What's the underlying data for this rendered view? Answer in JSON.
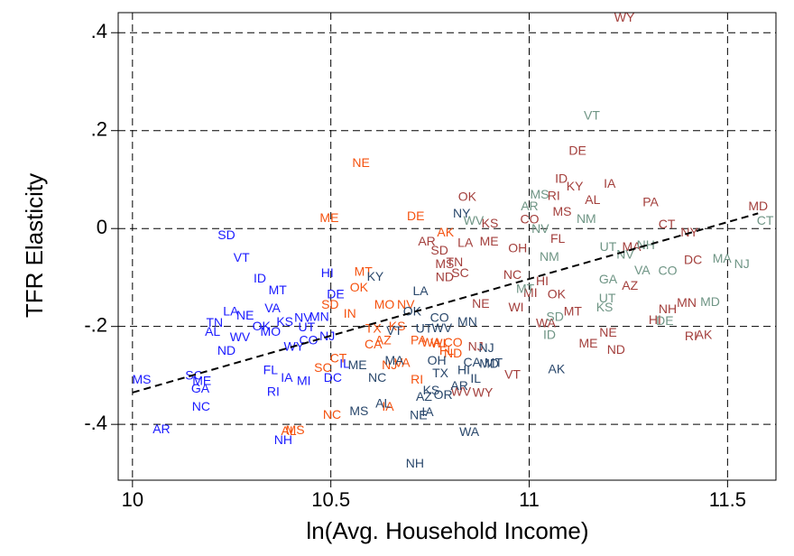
{
  "chart_data": {
    "type": "scatter",
    "x_label": "ln(Avg. Household Income)",
    "y_label": "TFR Elasticity",
    "xlim": [
      9.964,
      11.622
    ],
    "ylim": [
      -0.514,
      0.441
    ],
    "xticks": [
      10,
      10.5,
      11,
      11.5
    ],
    "yticks": [
      {
        "value": 0.4,
        "label": ".4"
      },
      {
        "value": 0.2,
        "label": ".2"
      },
      0,
      {
        "value": -0.2,
        "label": "-.2"
      },
      {
        "value": -0.4,
        "label": "-.4"
      }
    ],
    "grid": true,
    "fit_line": {
      "color": "#000000",
      "x": [
        10,
        11.577
      ],
      "y": [
        -0.335,
        0.031
      ]
    },
    "series": [
      {
        "color": "#1a1aff",
        "labels": [
          "SD",
          "VT",
          "ID",
          "MT",
          "HI",
          "LA",
          "NE",
          "TN",
          "AL",
          "VA",
          "OK",
          "KS",
          "MO",
          "WV",
          "ND",
          "UT",
          "MN",
          "MS",
          "SC",
          "ME",
          "GA",
          "FL",
          "NC",
          "RI",
          "AR",
          "NH",
          "WY",
          "IA",
          "MI",
          "NV",
          "DE",
          "IL",
          "NJ",
          "DC",
          "CO"
        ],
        "x": [
          10.237,
          10.275,
          10.321,
          10.366,
          10.491,
          10.248,
          10.284,
          10.207,
          10.202,
          10.353,
          10.325,
          10.384,
          10.348,
          10.271,
          10.237,
          10.439,
          10.471,
          10.023,
          10.155,
          10.175,
          10.171,
          10.348,
          10.173,
          10.355,
          10.073,
          10.38,
          10.407,
          10.389,
          10.432,
          10.43,
          10.512,
          10.535,
          10.491,
          10.505,
          10.444
        ],
        "y": [
          -0.015,
          -0.061,
          -0.103,
          -0.127,
          -0.092,
          -0.171,
          -0.179,
          -0.194,
          -0.212,
          -0.164,
          -0.201,
          -0.192,
          -0.212,
          -0.223,
          -0.251,
          -0.203,
          -0.182,
          -0.31,
          -0.302,
          -0.313,
          -0.328,
          -0.291,
          -0.365,
          -0.335,
          -0.411,
          -0.433,
          -0.243,
          -0.306,
          -0.313,
          -0.184,
          -0.136,
          -0.278,
          -0.221,
          -0.306,
          -0.23
        ]
      },
      {
        "color": "#f5520f",
        "labels": [
          "NE",
          "ME",
          "MT",
          "OK",
          "SD",
          "MO",
          "IN",
          "TX",
          "KS",
          "NV",
          "CA",
          "AZ",
          "WA",
          "PA",
          "ND",
          "FL",
          "CT",
          "SC",
          "NC",
          "AL",
          "MS",
          "RI",
          "IA",
          "WI",
          "CO",
          "DE",
          "AK",
          "NJ",
          "VA"
        ],
        "x": [
          10.576,
          10.496,
          10.582,
          10.571,
          10.498,
          10.635,
          10.548,
          10.607,
          10.667,
          10.689,
          10.607,
          10.632,
          10.753,
          10.721,
          10.808,
          10.792,
          10.519,
          10.48,
          10.503,
          10.394,
          10.41,
          10.717,
          10.644,
          10.771,
          10.808,
          10.714,
          10.789,
          10.648,
          10.68
        ],
        "y": [
          0.133,
          0.02,
          -0.09,
          -0.122,
          -0.157,
          -0.157,
          -0.175,
          -0.206,
          -0.201,
          -0.157,
          -0.238,
          -0.23,
          -0.234,
          -0.23,
          -0.256,
          -0.251,
          -0.267,
          -0.286,
          -0.382,
          -0.415,
          -0.413,
          -0.31,
          -0.365,
          -0.236,
          -0.234,
          0.024,
          -0.009,
          -0.28,
          -0.276
        ]
      },
      {
        "color": "#a33f3c",
        "labels": [
          "WY",
          "DE",
          "ID",
          "KY",
          "IA",
          "AL",
          "PA",
          "OK",
          "RI",
          "MS",
          "CT",
          "MD",
          "NE",
          "WI",
          "VT",
          "WY",
          "AR",
          "SD",
          "MS",
          "ND",
          "TN",
          "SC",
          "LA",
          "ME",
          "OH",
          "NC",
          "HI",
          "MI",
          "OK",
          "MT",
          "WA",
          "ME",
          "NE",
          "ND",
          "NH",
          "MN",
          "RI",
          "AK",
          "HI",
          "AZ",
          "DC",
          "NY",
          "MA",
          "KS",
          "NJ",
          "WV",
          "CO",
          "FL"
        ],
        "x": [
          11.24,
          11.122,
          11.081,
          11.115,
          11.203,
          11.16,
          11.306,
          10.844,
          11.062,
          11.083,
          11.347,
          11.577,
          10.878,
          10.967,
          10.958,
          10.883,
          10.742,
          10.774,
          10.787,
          10.787,
          10.812,
          10.826,
          10.839,
          10.899,
          10.971,
          10.958,
          11.033,
          11.003,
          11.069,
          11.11,
          11.042,
          11.149,
          11.199,
          11.219,
          11.349,
          11.397,
          11.408,
          11.44,
          11.317,
          11.254,
          11.413,
          11.404,
          11.258,
          10.901,
          10.865,
          10.828,
          11.001,
          11.072
        ],
        "y": [
          0.429,
          0.157,
          0.1,
          0.085,
          0.09,
          0.057,
          0.052,
          0.063,
          0.065,
          0.033,
          0.007,
          0.044,
          -0.155,
          -0.162,
          -0.3,
          -0.337,
          -0.028,
          -0.046,
          -0.074,
          -0.101,
          -0.07,
          -0.092,
          -0.031,
          -0.028,
          -0.042,
          -0.096,
          -0.109,
          -0.133,
          -0.136,
          -0.171,
          -0.195,
          -0.236,
          -0.214,
          -0.249,
          -0.166,
          -0.153,
          -0.221,
          -0.219,
          -0.188,
          -0.118,
          -0.066,
          -0.009,
          -0.039,
          0.009,
          -0.243,
          -0.335,
          0.017,
          -0.022
        ]
      },
      {
        "color": "#6f9585",
        "labels": [
          "VT",
          "AR",
          "MS",
          "WV",
          "NM",
          "UT",
          "NV",
          "SD",
          "ID",
          "KS",
          "MT",
          "NM",
          "GA",
          "UT",
          "CO",
          "MA",
          "NJ",
          "CT",
          "DE",
          "MD",
          "NH",
          "VA",
          "NV"
        ],
        "x": [
          11.158,
          11.001,
          11.026,
          10.86,
          11.144,
          11.199,
          11.028,
          11.065,
          11.051,
          11.19,
          10.99,
          11.051,
          11.199,
          11.197,
          11.349,
          11.486,
          11.536,
          11.595,
          11.342,
          11.456,
          11.294,
          11.285,
          11.242
        ],
        "y": [
          0.229,
          0.044,
          0.068,
          0.015,
          0.018,
          -0.039,
          -0.002,
          -0.182,
          -0.219,
          -0.162,
          -0.125,
          -0.059,
          -0.105,
          -0.144,
          -0.088,
          -0.063,
          -0.074,
          0.015,
          -0.19,
          -0.151,
          -0.035,
          -0.087,
          -0.055
        ]
      },
      {
        "color": "#29476b",
        "labels": [
          "NY",
          "LA",
          "KY",
          "OK",
          "WV",
          "MN",
          "NJ",
          "IL",
          "OH",
          "MT",
          "CA",
          "AK",
          "WA",
          "NH",
          "NE",
          "IA",
          "AR",
          "KS",
          "OR",
          "AZ",
          "MA",
          "ME",
          "VT",
          "NC",
          "TX",
          "HI",
          "MS",
          "AL",
          "UT",
          "CO",
          "MD"
        ],
        "x": [
          10.83,
          10.726,
          10.612,
          10.705,
          10.78,
          10.844,
          10.892,
          10.865,
          10.767,
          10.91,
          10.856,
          11.069,
          10.849,
          10.712,
          10.721,
          10.744,
          10.824,
          10.753,
          10.783,
          10.735,
          10.66,
          10.567,
          10.66,
          10.617,
          10.776,
          10.835,
          10.571,
          10.632,
          10.735,
          10.774,
          10.899
        ],
        "y": [
          0.029,
          -0.129,
          -0.1,
          -0.171,
          -0.205,
          -0.192,
          -0.245,
          -0.308,
          -0.271,
          -0.276,
          -0.275,
          -0.289,
          -0.417,
          -0.481,
          -0.383,
          -0.376,
          -0.323,
          -0.332,
          -0.341,
          -0.345,
          -0.271,
          -0.28,
          -0.21,
          -0.306,
          -0.297,
          -0.291,
          -0.374,
          -0.359,
          -0.206,
          -0.184,
          -0.278
        ]
      }
    ]
  }
}
